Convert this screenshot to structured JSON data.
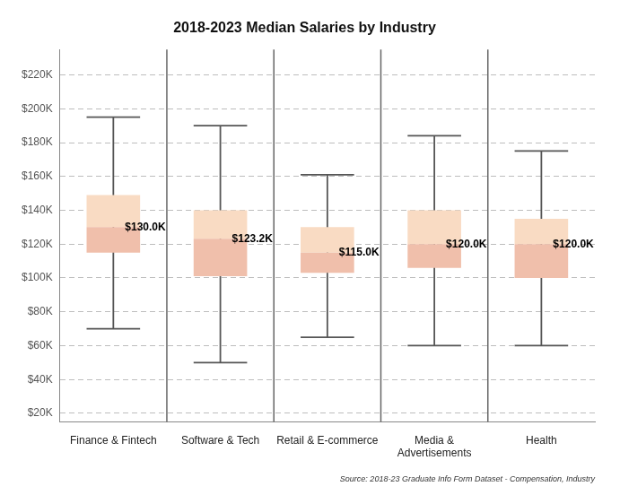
{
  "chart_data": {
    "type": "box",
    "title": "2018-2023 Median Salaries by Industry",
    "caption": "Source: 2018-23 Graduate Info Form Dataset - Compensation, Industry",
    "categories": [
      "Finance & Fintech",
      "Software & Tech",
      "Retail & E-commerce",
      [
        "Media &",
        "Advertisements"
      ],
      "Health"
    ],
    "min": [
      70000,
      50000,
      65000,
      60000,
      60000
    ],
    "q1": [
      115000,
      101000,
      103000,
      106000,
      100000
    ],
    "values": [
      130000,
      123200,
      115000,
      120000,
      120000
    ],
    "value_labels": [
      "$130.0K",
      "$123.2K",
      "$115.0K",
      "$120.0K",
      "$120.0K"
    ],
    "q3": [
      149000,
      140000,
      130000,
      140000,
      135000
    ],
    "max": [
      195000,
      190000,
      161000,
      184000,
      175000
    ],
    "ylim": [
      15000,
      235000
    ],
    "yticks": [
      {
        "value": 20000,
        "label": "$20K"
      },
      {
        "value": 40000,
        "label": "$40K"
      },
      {
        "value": 60000,
        "label": "$60K"
      },
      {
        "value": 80000,
        "label": "$80K"
      },
      {
        "value": 100000,
        "label": "$100K"
      },
      {
        "value": 120000,
        "label": "$120K"
      },
      {
        "value": 140000,
        "label": "$140K"
      },
      {
        "value": 160000,
        "label": "$160K"
      },
      {
        "value": 180000,
        "label": "$180K"
      },
      {
        "value": 200000,
        "label": "$200K"
      },
      {
        "value": 220000,
        "label": "$220K"
      }
    ],
    "grid": true,
    "data_labels": true
  }
}
